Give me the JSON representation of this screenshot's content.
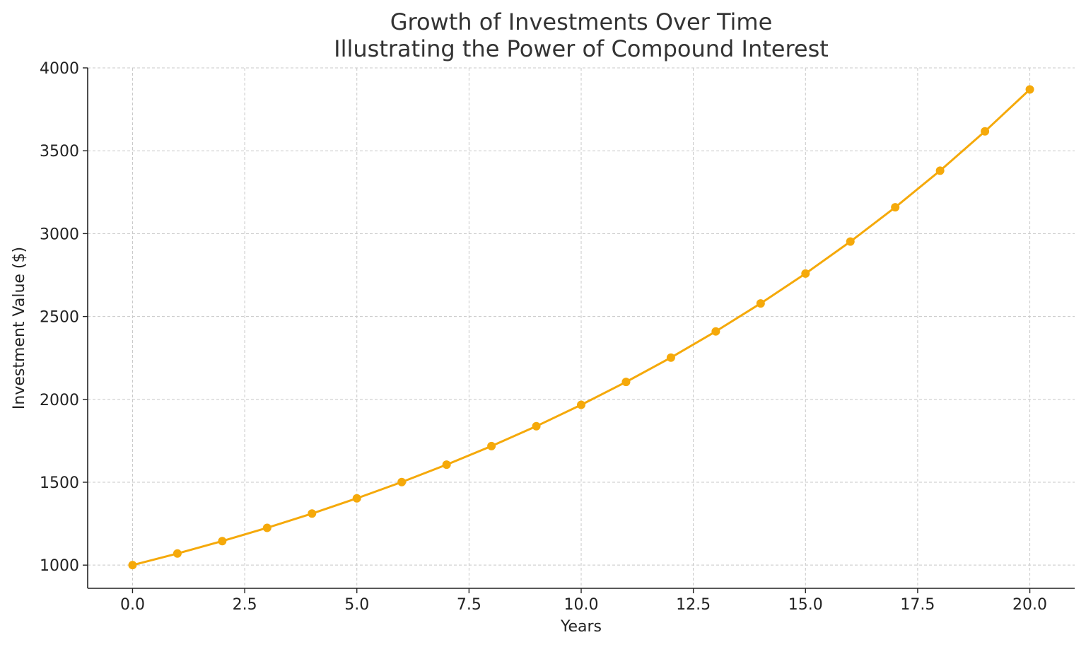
{
  "chart_data": {
    "type": "line",
    "title_lines": [
      "Growth of Investments Over Time",
      "Illustrating the Power of Compound Interest"
    ],
    "xlabel": "Years",
    "ylabel": "Investment Value ($)",
    "xlim": [
      -1,
      21
    ],
    "ylim": [
      860,
      4000
    ],
    "x_ticks": [
      0.0,
      2.5,
      5.0,
      7.5,
      10.0,
      12.5,
      15.0,
      17.5,
      20.0
    ],
    "x_tick_labels": [
      "0.0",
      "2.5",
      "5.0",
      "7.5",
      "10.0",
      "12.5",
      "15.0",
      "17.5",
      "20.0"
    ],
    "y_ticks": [
      1000,
      1500,
      2000,
      2500,
      3000,
      3500,
      4000
    ],
    "y_tick_labels": [
      "1000",
      "1500",
      "2000",
      "2500",
      "3000",
      "3500",
      "4000"
    ],
    "grid": true,
    "color": "#f5a90a",
    "series": [
      {
        "x": [
          0,
          1,
          2,
          3,
          4,
          5,
          6,
          7,
          8,
          9,
          10,
          11,
          12,
          13,
          14,
          15,
          16,
          17,
          18,
          19,
          20
        ],
        "values": [
          1000,
          1070,
          1145,
          1225,
          1311,
          1403,
          1501,
          1606,
          1718,
          1838,
          1967,
          2105,
          2252,
          2410,
          2579,
          2759,
          2952,
          3159,
          3380,
          3617,
          3870
        ]
      }
    ]
  }
}
